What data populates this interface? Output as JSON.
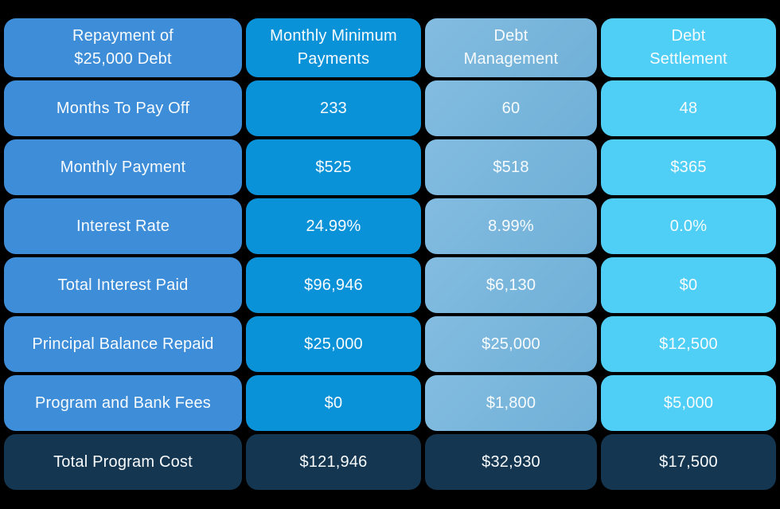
{
  "canvas": {
    "background": "#000000"
  },
  "colors": {
    "bg": "#000000",
    "col_label": "#3E8DD8",
    "col_minimum": "#0A92D8",
    "col_management": "#77B6DD",
    "col_settlement": "#4FCEF6",
    "row_total": "#143650",
    "text": "#F8FBFD"
  },
  "chart_data": {
    "type": "table",
    "title": "Repayment of $25,000 Debt",
    "columns": [
      "Repayment of $25,000 Debt",
      "Monthly Minimum Payments",
      "Debt Management",
      "Debt Settlement"
    ],
    "rows": [
      [
        "Months To Pay Off",
        "233",
        "60",
        "48"
      ],
      [
        "Monthly Payment",
        "$525",
        "$518",
        "$365"
      ],
      [
        "Interest Rate",
        "24.99%",
        "8.99%",
        "0.0%"
      ],
      [
        "Total Interest Paid",
        "$96,946",
        "$6,130",
        "$0"
      ],
      [
        "Principal Balance Repaid",
        "$25,000",
        "$25,000",
        "$12,500"
      ],
      [
        "Program and Bank Fees",
        "$0",
        "$1,800",
        "$5,000"
      ],
      [
        "Total Program Cost",
        "$121,946",
        "$32,930",
        "$17,500"
      ]
    ],
    "layout": {
      "grid": "off",
      "legend": "none",
      "column_colors": [
        "#3E8DD8",
        "#0A92D8",
        "#77B6DD",
        "#4FCEF6"
      ],
      "total_row_color": "#143650"
    }
  },
  "table": {
    "header": {
      "cells": [
        {
          "line1": "Repayment of",
          "line2": "$25,000 Debt"
        },
        {
          "line1": "Monthly Minimum",
          "line2": "Payments"
        },
        {
          "line1": "Debt",
          "line2": "Management"
        },
        {
          "line1": "Debt",
          "line2": "Settlement"
        }
      ]
    },
    "rows": [
      {
        "cells": [
          "Months To Pay Off",
          "233",
          "60",
          "48"
        ]
      },
      {
        "cells": [
          "Monthly Payment",
          "$525",
          "$518",
          "$365"
        ]
      },
      {
        "cells": [
          "Interest Rate",
          "24.99%",
          "8.99%",
          "0.0%"
        ]
      },
      {
        "cells": [
          "Total Interest Paid",
          "$96,946",
          "$6,130",
          "$0"
        ]
      },
      {
        "cells": [
          "Principal Balance Repaid",
          "$25,000",
          "$25,000",
          "$12,500"
        ]
      },
      {
        "cells": [
          "Program and Bank Fees",
          "$0",
          "$1,800",
          "$5,000"
        ]
      },
      {
        "cells": [
          "Total Program Cost",
          "$121,946",
          "$32,930",
          "$17,500"
        ]
      }
    ]
  }
}
